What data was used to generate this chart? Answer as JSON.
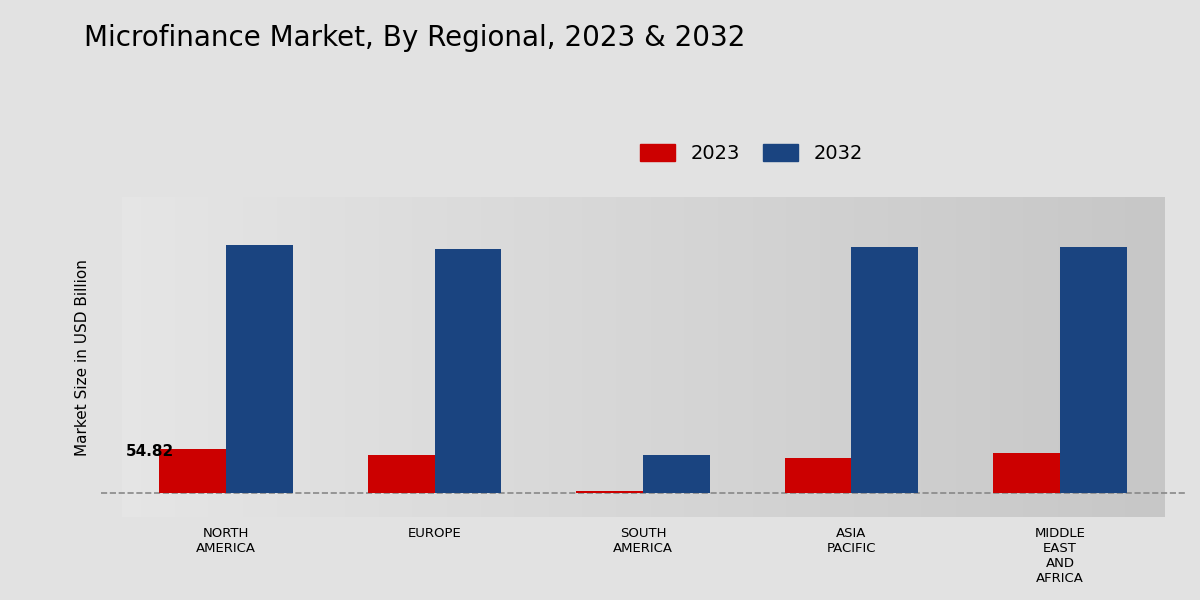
{
  "title": "Microfinance Market, By Regional, 2023 & 2032",
  "ylabel": "Market Size in USD Billion",
  "categories": [
    "NORTH\nAMERICA",
    "EUROPE",
    "SOUTH\nAMERICA",
    "ASIA\nPACIFIC",
    "MIDDLE\nEAST\nAND\nAFRICA"
  ],
  "values_2023": [
    54.82,
    48.0,
    3.0,
    44.0,
    50.0
  ],
  "values_2032": [
    310.0,
    305.0,
    48.0,
    308.0,
    307.0
  ],
  "color_2023": "#cc0000",
  "color_2032": "#1a4480",
  "annotation_text": "54.82",
  "annotation_region": 0,
  "background_top": "#e8e8e8",
  "background_bottom": "#c8c8c8",
  "dashed_line_y": 0,
  "bar_width": 0.32,
  "ylim": [
    -30,
    370
  ],
  "legend_labels": [
    "2023",
    "2032"
  ],
  "title_fontsize": 20,
  "label_fontsize": 11,
  "tick_fontsize": 9.5
}
